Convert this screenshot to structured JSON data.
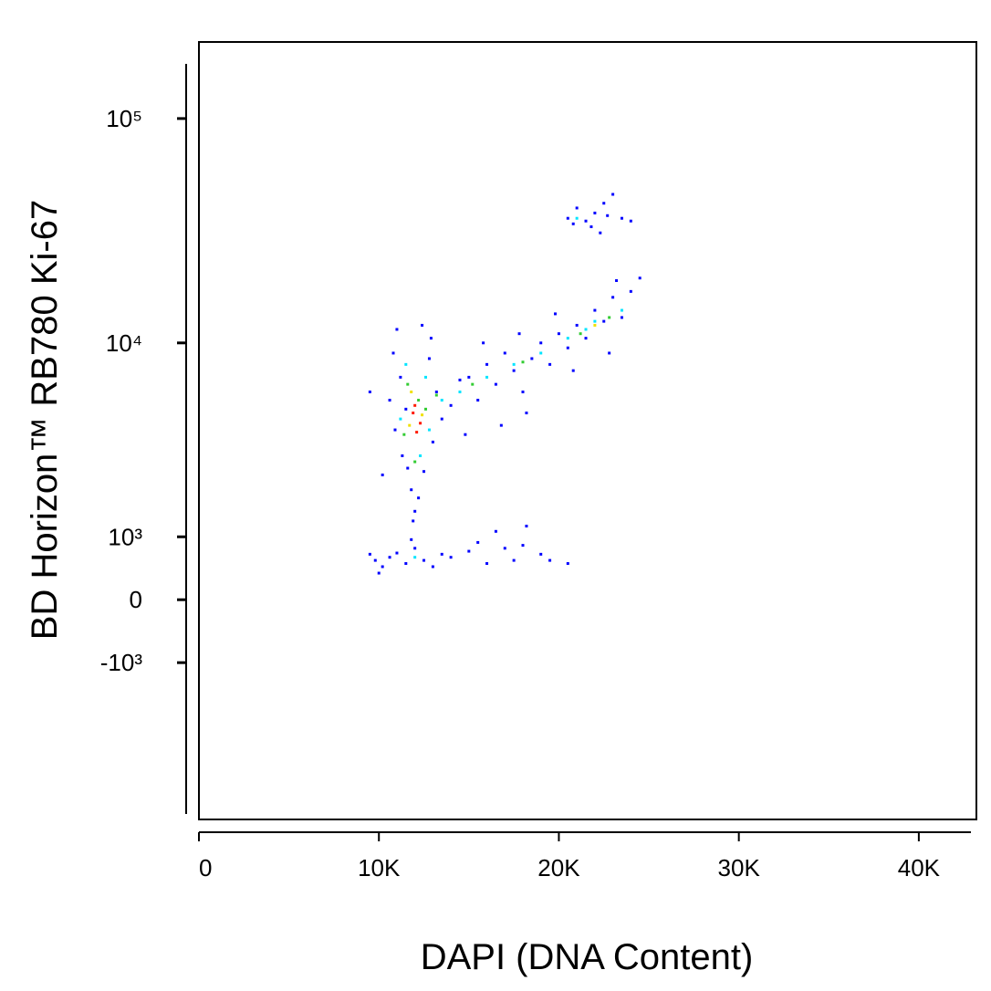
{
  "chart_data": {
    "type": "scatter",
    "x_label": "DAPI (DNA Content)",
    "y_label": "BD Horizon™ RB780 Ki-67",
    "xlim": [
      0,
      43200
    ],
    "xticks": [
      {
        "value": 0,
        "label": "0"
      },
      {
        "value": 10000,
        "label": "10K"
      },
      {
        "value": 20000,
        "label": "20K"
      },
      {
        "value": 30000,
        "label": "30K"
      },
      {
        "value": 40000,
        "label": "40K"
      }
    ],
    "yscale": "asinh",
    "ylim": [
      -6800,
      219000
    ],
    "yticks": [
      {
        "value": 100000,
        "label": "10⁵"
      },
      {
        "value": 10000,
        "label": "10⁴"
      },
      {
        "value": 1000,
        "label": "10³"
      },
      0,
      {
        "value": -1000,
        "label": "-10³"
      }
    ],
    "series": [
      {
        "color": "#0000ff",
        "x": [
          10800,
          11200,
          11500,
          12800,
          13200,
          10900,
          11300,
          12500,
          13000,
          11800,
          12200,
          12000,
          11600,
          10600,
          9500,
          10200,
          13500,
          14000,
          14500,
          12900,
          11000,
          12400,
          11900,
          15000,
          15500,
          16000,
          16500,
          17000,
          17500,
          18000,
          18500,
          19000,
          19500,
          20000,
          20500,
          21000,
          21500,
          22000,
          22500,
          23000,
          23500,
          24000,
          23200,
          20800,
          18200,
          16800,
          14800,
          19800,
          22800,
          24500,
          17800,
          15800,
          20500,
          21000,
          21500,
          22000,
          22500,
          23000,
          23500,
          22300,
          21800,
          24000,
          20800,
          22700,
          9500,
          9800,
          10200,
          10600,
          11000,
          11500,
          12000,
          12500,
          13000,
          13500,
          14000,
          15000,
          16000,
          17000,
          17500,
          18000,
          19000,
          19500,
          20500,
          16500,
          18200,
          15500,
          11800,
          10000
        ],
        "values": [
          9000,
          7000,
          5000,
          8500,
          6000,
          4000,
          3000,
          2500,
          3500,
          2000,
          1800,
          1500,
          2600,
          5500,
          6000,
          2400,
          4500,
          5200,
          6800,
          10500,
          11500,
          12000,
          1300,
          7000,
          5500,
          8000,
          6500,
          9000,
          7500,
          6000,
          8500,
          10000,
          8000,
          11000,
          9500,
          12000,
          10500,
          14000,
          12500,
          16000,
          13000,
          17000,
          19000,
          7500,
          4800,
          4200,
          3800,
          13500,
          9000,
          19500,
          11000,
          10000,
          36000,
          40000,
          35000,
          38000,
          42000,
          46000,
          36000,
          31000,
          33000,
          35000,
          34000,
          37000,
          700,
          600,
          500,
          650,
          720,
          550,
          800,
          600,
          500,
          700,
          650,
          750,
          550,
          800,
          600,
          850,
          700,
          600,
          550,
          1100,
          1200,
          900,
          950,
          400
        ]
      },
      {
        "color": "#00e5ff",
        "x": [
          11500,
          12600,
          11200,
          12800,
          12300,
          14500,
          16000,
          17500,
          19000,
          20500,
          22000,
          23500,
          21500,
          13500,
          12000,
          21000
        ],
        "values": [
          8000,
          7000,
          4500,
          4000,
          3000,
          6000,
          7000,
          8000,
          9000,
          10500,
          12500,
          14000,
          11500,
          5500,
          650,
          36000
        ]
      },
      {
        "color": "#33cc33",
        "x": [
          11600,
          12200,
          11400,
          12600,
          12000,
          15200,
          18000,
          21200,
          22800,
          13200
        ],
        "values": [
          6500,
          5500,
          3800,
          5000,
          2800,
          6500,
          8200,
          11000,
          13000,
          5800
        ]
      },
      {
        "color": "#f0e000",
        "x": [
          11800,
          12400,
          11700,
          22000
        ],
        "values": [
          6000,
          4700,
          4200,
          12000
        ]
      },
      {
        "color": "#ff1a00",
        "x": [
          12000,
          12300,
          11900,
          12100
        ],
        "values": [
          5200,
          4300,
          4800,
          3900
        ]
      }
    ]
  }
}
